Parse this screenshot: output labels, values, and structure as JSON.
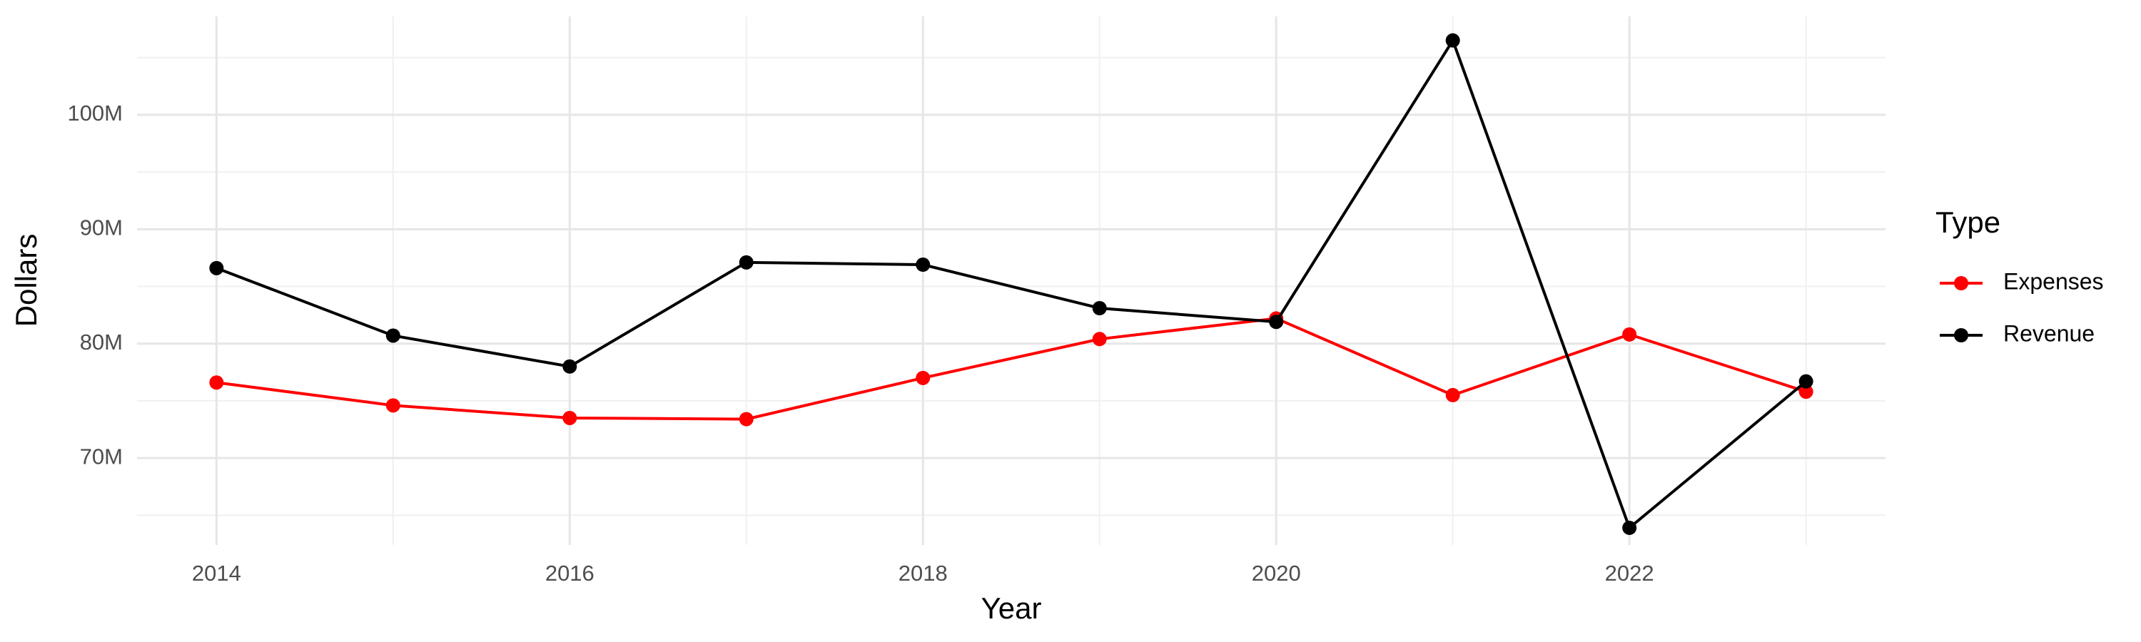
{
  "chart_data": {
    "type": "line",
    "x_label": "Year",
    "y_label": "Dollars",
    "legend_title": "Type",
    "legend_position": "right",
    "x": [
      2014,
      2015,
      2016,
      2017,
      2018,
      2019,
      2020,
      2021,
      2022,
      2023
    ],
    "series": [
      {
        "name": "Expenses",
        "color": "#ff0000",
        "values": [
          76600000,
          74600000,
          73500000,
          73400000,
          77000000,
          80400000,
          82200000,
          75500000,
          80800000,
          75800000
        ]
      },
      {
        "name": "Revenue",
        "color": "#000000",
        "values": [
          86600000,
          80700000,
          78000000,
          87100000,
          86900000,
          83100000,
          81900000,
          106500000,
          63900000,
          76700000
        ]
      }
    ],
    "xlim": [
      2013.55,
      2023.45
    ],
    "xticks": [
      2014,
      2016,
      2018,
      2020,
      2022
    ],
    "xticks_minor": [
      2015,
      2017,
      2019,
      2021,
      2023
    ],
    "ylim": [
      62400000,
      108600000
    ],
    "yticks": [
      {
        "value": 70000000,
        "label": "70M"
      },
      {
        "value": 80000000,
        "label": "80M"
      },
      {
        "value": 90000000,
        "label": "90M"
      },
      {
        "value": 100000000,
        "label": "100M"
      }
    ],
    "yticks_minor": [
      65000000,
      75000000,
      85000000,
      95000000,
      105000000
    ],
    "grid": true
  }
}
